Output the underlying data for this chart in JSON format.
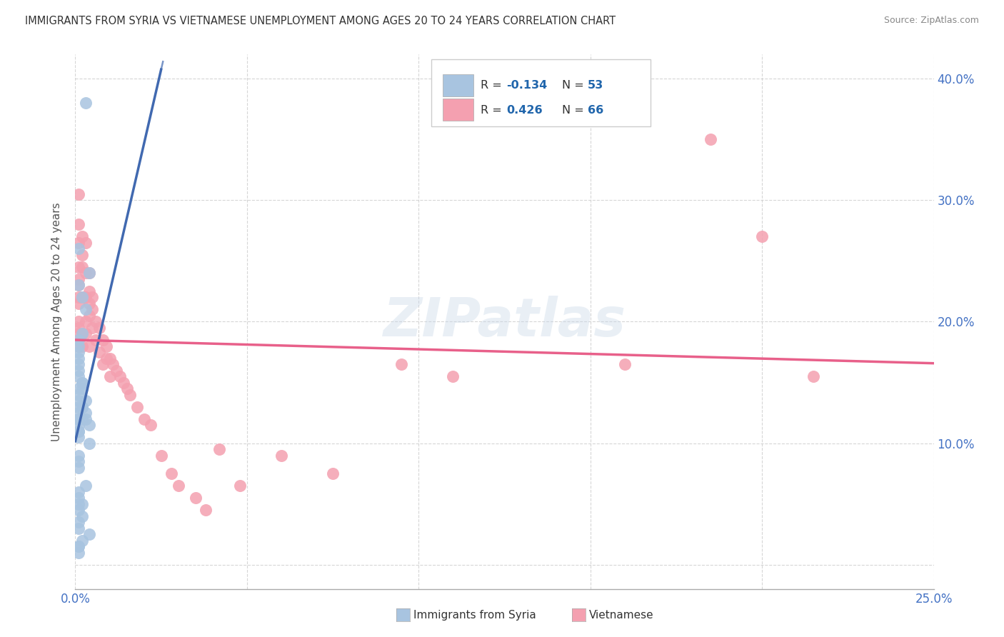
{
  "title": "IMMIGRANTS FROM SYRIA VS VIETNAMESE UNEMPLOYMENT AMONG AGES 20 TO 24 YEARS CORRELATION CHART",
  "source": "Source: ZipAtlas.com",
  "ylabel": "Unemployment Among Ages 20 to 24 years",
  "xlim": [
    0.0,
    0.25
  ],
  "ylim": [
    -0.02,
    0.42
  ],
  "x_ticks": [
    0.0,
    0.05,
    0.1,
    0.15,
    0.2,
    0.25
  ],
  "x_tick_labels": [
    "0.0%",
    "",
    "",
    "",
    "",
    "25.0%"
  ],
  "y_ticks": [
    0.0,
    0.1,
    0.2,
    0.3,
    0.4
  ],
  "y_tick_labels": [
    "",
    "10.0%",
    "20.0%",
    "30.0%",
    "40.0%"
  ],
  "background_color": "#ffffff",
  "grid_color": "#cccccc",
  "watermark": "ZIPatlas",
  "series1_color": "#a8c4e0",
  "series2_color": "#f4a0b0",
  "series1_label": "Immigrants from Syria",
  "series2_label": "Vietnamese",
  "series1_r": "-0.134",
  "series1_n": "53",
  "series2_r": "0.426",
  "series2_n": "66",
  "series1_line_color": "#4169b0",
  "series2_line_color": "#e8608a",
  "legend_r_color": "#2166ac",
  "syria_x": [
    0.003,
    0.001,
    0.004,
    0.001,
    0.002,
    0.003,
    0.002,
    0.001,
    0.001,
    0.001,
    0.001,
    0.001,
    0.001,
    0.001,
    0.002,
    0.001,
    0.001,
    0.001,
    0.001,
    0.001,
    0.001,
    0.001,
    0.001,
    0.001,
    0.001,
    0.001,
    0.002,
    0.002,
    0.002,
    0.001,
    0.001,
    0.001,
    0.002,
    0.003,
    0.003,
    0.004,
    0.004,
    0.003,
    0.002,
    0.001,
    0.001,
    0.002,
    0.001,
    0.001,
    0.002,
    0.001,
    0.001,
    0.002,
    0.001,
    0.003,
    0.001,
    0.004,
    0.001
  ],
  "syria_y": [
    0.38,
    0.26,
    0.24,
    0.23,
    0.22,
    0.21,
    0.19,
    0.185,
    0.175,
    0.18,
    0.17,
    0.165,
    0.16,
    0.155,
    0.15,
    0.145,
    0.14,
    0.135,
    0.13,
    0.125,
    0.12,
    0.12,
    0.115,
    0.11,
    0.11,
    0.105,
    0.15,
    0.13,
    0.12,
    0.09,
    0.085,
    0.08,
    0.13,
    0.125,
    0.12,
    0.115,
    0.1,
    0.135,
    0.145,
    0.06,
    0.055,
    0.05,
    0.05,
    0.045,
    0.04,
    0.035,
    0.03,
    0.02,
    0.015,
    0.065,
    0.015,
    0.025,
    0.01
  ],
  "viet_x": [
    0.001,
    0.001,
    0.001,
    0.001,
    0.001,
    0.001,
    0.001,
    0.001,
    0.001,
    0.001,
    0.001,
    0.001,
    0.001,
    0.002,
    0.002,
    0.002,
    0.002,
    0.002,
    0.002,
    0.003,
    0.003,
    0.003,
    0.003,
    0.003,
    0.004,
    0.004,
    0.004,
    0.004,
    0.004,
    0.005,
    0.005,
    0.005,
    0.006,
    0.006,
    0.007,
    0.007,
    0.008,
    0.008,
    0.009,
    0.009,
    0.01,
    0.01,
    0.011,
    0.012,
    0.013,
    0.014,
    0.015,
    0.016,
    0.018,
    0.02,
    0.022,
    0.025,
    0.028,
    0.03,
    0.035,
    0.038,
    0.042,
    0.048,
    0.06,
    0.075,
    0.095,
    0.11,
    0.16,
    0.185,
    0.2,
    0.215
  ],
  "viet_y": [
    0.305,
    0.28,
    0.265,
    0.245,
    0.235,
    0.23,
    0.22,
    0.215,
    0.2,
    0.195,
    0.19,
    0.185,
    0.18,
    0.27,
    0.255,
    0.245,
    0.22,
    0.19,
    0.18,
    0.265,
    0.24,
    0.22,
    0.2,
    0.19,
    0.24,
    0.225,
    0.215,
    0.205,
    0.18,
    0.22,
    0.21,
    0.195,
    0.2,
    0.185,
    0.195,
    0.175,
    0.185,
    0.165,
    0.18,
    0.17,
    0.17,
    0.155,
    0.165,
    0.16,
    0.155,
    0.15,
    0.145,
    0.14,
    0.13,
    0.12,
    0.115,
    0.09,
    0.075,
    0.065,
    0.055,
    0.045,
    0.095,
    0.065,
    0.09,
    0.075,
    0.165,
    0.155,
    0.165,
    0.35,
    0.27,
    0.155
  ]
}
